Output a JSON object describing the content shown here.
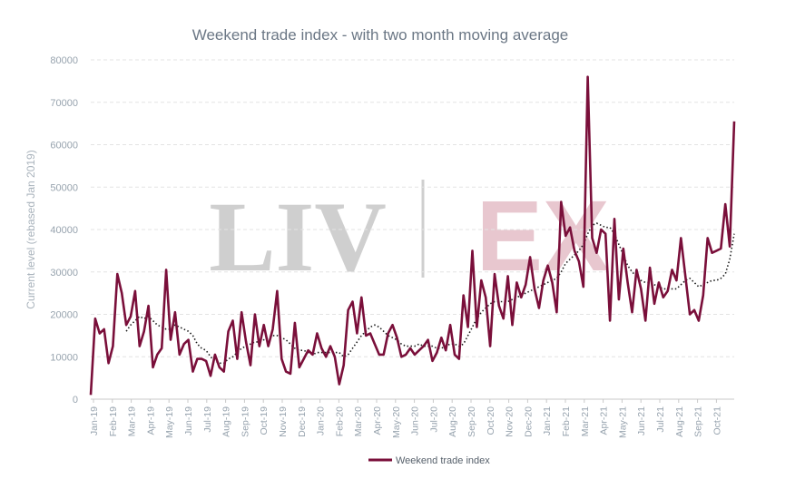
{
  "chart_data": {
    "type": "line",
    "title": "Weekend trade index - with two month moving average",
    "ylabel": "Current level (rebased  Jan 2019)",
    "xlabel": "",
    "ylim": [
      0,
      80000
    ],
    "yticks": [
      "0",
      "10000",
      "20000",
      "30000",
      "40000",
      "50000",
      "60000",
      "70000",
      "80000"
    ],
    "xticks": [
      "Jan-19",
      "Feb-19",
      "Mar-19",
      "Apr-19",
      "May-19",
      "Jun-19",
      "Jul-19",
      "Aug-19",
      "Sep-19",
      "Oct-19",
      "Nov-19",
      "Dec-19",
      "Jan-20",
      "Feb-20",
      "Mar-20",
      "Apr-20",
      "May-20",
      "Jun-20",
      "Jul-20",
      "Aug-20",
      "Sep-20",
      "Oct-20",
      "Nov-20",
      "Dec-20",
      "Jan-21",
      "Feb-21",
      "Mar-21",
      "Apr-21",
      "May-21",
      "Jun-21",
      "Jul-21",
      "Aug-21",
      "Sep-21",
      "Oct-21"
    ],
    "grid": true,
    "legend_position": "bottom",
    "watermark": {
      "left": "LIV",
      "right": "EX",
      "left_color": "#cfcfcf",
      "right_color": "#e8c7cf"
    },
    "series": [
      {
        "name": "Weekend trade index",
        "color": "#7a0f3a",
        "style": "solid",
        "values": [
          1000,
          19000,
          15500,
          16500,
          8500,
          12500,
          29500,
          25000,
          17500,
          19500,
          25500,
          12500,
          16000,
          22000,
          7500,
          10500,
          12000,
          30500,
          14000,
          20500,
          10500,
          13000,
          14000,
          6500,
          9500,
          9500,
          9000,
          5500,
          10500,
          7500,
          6500,
          16000,
          18500,
          9500,
          20500,
          13500,
          8000,
          20000,
          12500,
          17500,
          12500,
          16500,
          25500,
          9500,
          6500,
          6000,
          18000,
          7500,
          9500,
          11500,
          10500,
          15500,
          12000,
          10000,
          12500,
          10000,
          3500,
          8000,
          21000,
          23000,
          15500,
          24000,
          15000,
          15500,
          13000,
          10500,
          10500,
          15500,
          17500,
          14500,
          10000,
          10500,
          12000,
          10500,
          11500,
          12500,
          14000,
          9000,
          11000,
          14500,
          11500,
          17500,
          10500,
          9500,
          24500,
          17000,
          35000,
          17000,
          28000,
          24000,
          12500,
          29500,
          22000,
          19000,
          29000,
          17500,
          27500,
          24000,
          27000,
          33500,
          26000,
          21500,
          28000,
          31500,
          27500,
          20500,
          46500,
          38500,
          40500,
          35000,
          32500,
          26500,
          76000,
          38000,
          34500,
          40000,
          39000,
          18500,
          42500,
          23500,
          35500,
          27500,
          20500,
          30500,
          26000,
          18500,
          31000,
          22500,
          27500,
          24000,
          25500,
          30500,
          28000,
          38000,
          29000,
          20000,
          21000,
          18500,
          24500,
          38000,
          34500,
          35000,
          35500,
          46000,
          36000,
          65500
        ]
      },
      {
        "name": "",
        "color": "#1a1a1a",
        "style": "dotted",
        "values": [
          null,
          null,
          null,
          null,
          null,
          null,
          null,
          null,
          16000,
          17500,
          18500,
          19500,
          19000,
          19500,
          18500,
          17500,
          17000,
          16500,
          16500,
          17500,
          17000,
          16500,
          16000,
          15000,
          13000,
          12000,
          11500,
          10000,
          9000,
          8500,
          8500,
          9500,
          10000,
          11000,
          12000,
          12500,
          13000,
          13500,
          13500,
          14000,
          14500,
          15000,
          15000,
          14500,
          14000,
          13000,
          12000,
          11500,
          11500,
          11000,
          10500,
          11000,
          11000,
          11000,
          11000,
          11000,
          11000,
          10000,
          10500,
          12000,
          13500,
          15000,
          16000,
          17000,
          17500,
          17000,
          16000,
          15000,
          14500,
          14000,
          13000,
          12500,
          12500,
          12500,
          13000,
          12500,
          12500,
          12500,
          12000,
          12000,
          12500,
          13000,
          13000,
          12500,
          13000,
          15000,
          17000,
          19000,
          20500,
          21500,
          22500,
          23000,
          23000,
          23000,
          23000,
          23500,
          24000,
          24500,
          25000,
          25500,
          26000,
          26500,
          27000,
          27500,
          28000,
          28500,
          30000,
          32000,
          33000,
          34000,
          35000,
          36500,
          39000,
          41000,
          41500,
          41000,
          40500,
          40500,
          39000,
          36500,
          34000,
          31500,
          30000,
          29000,
          28000,
          27500,
          27500,
          27000,
          26500,
          26000,
          26000,
          26000,
          26000,
          27000,
          28000,
          28500,
          27500,
          26500,
          27000,
          27500,
          28000,
          28000,
          28500,
          29500,
          33000,
          39000
        ]
      }
    ]
  }
}
